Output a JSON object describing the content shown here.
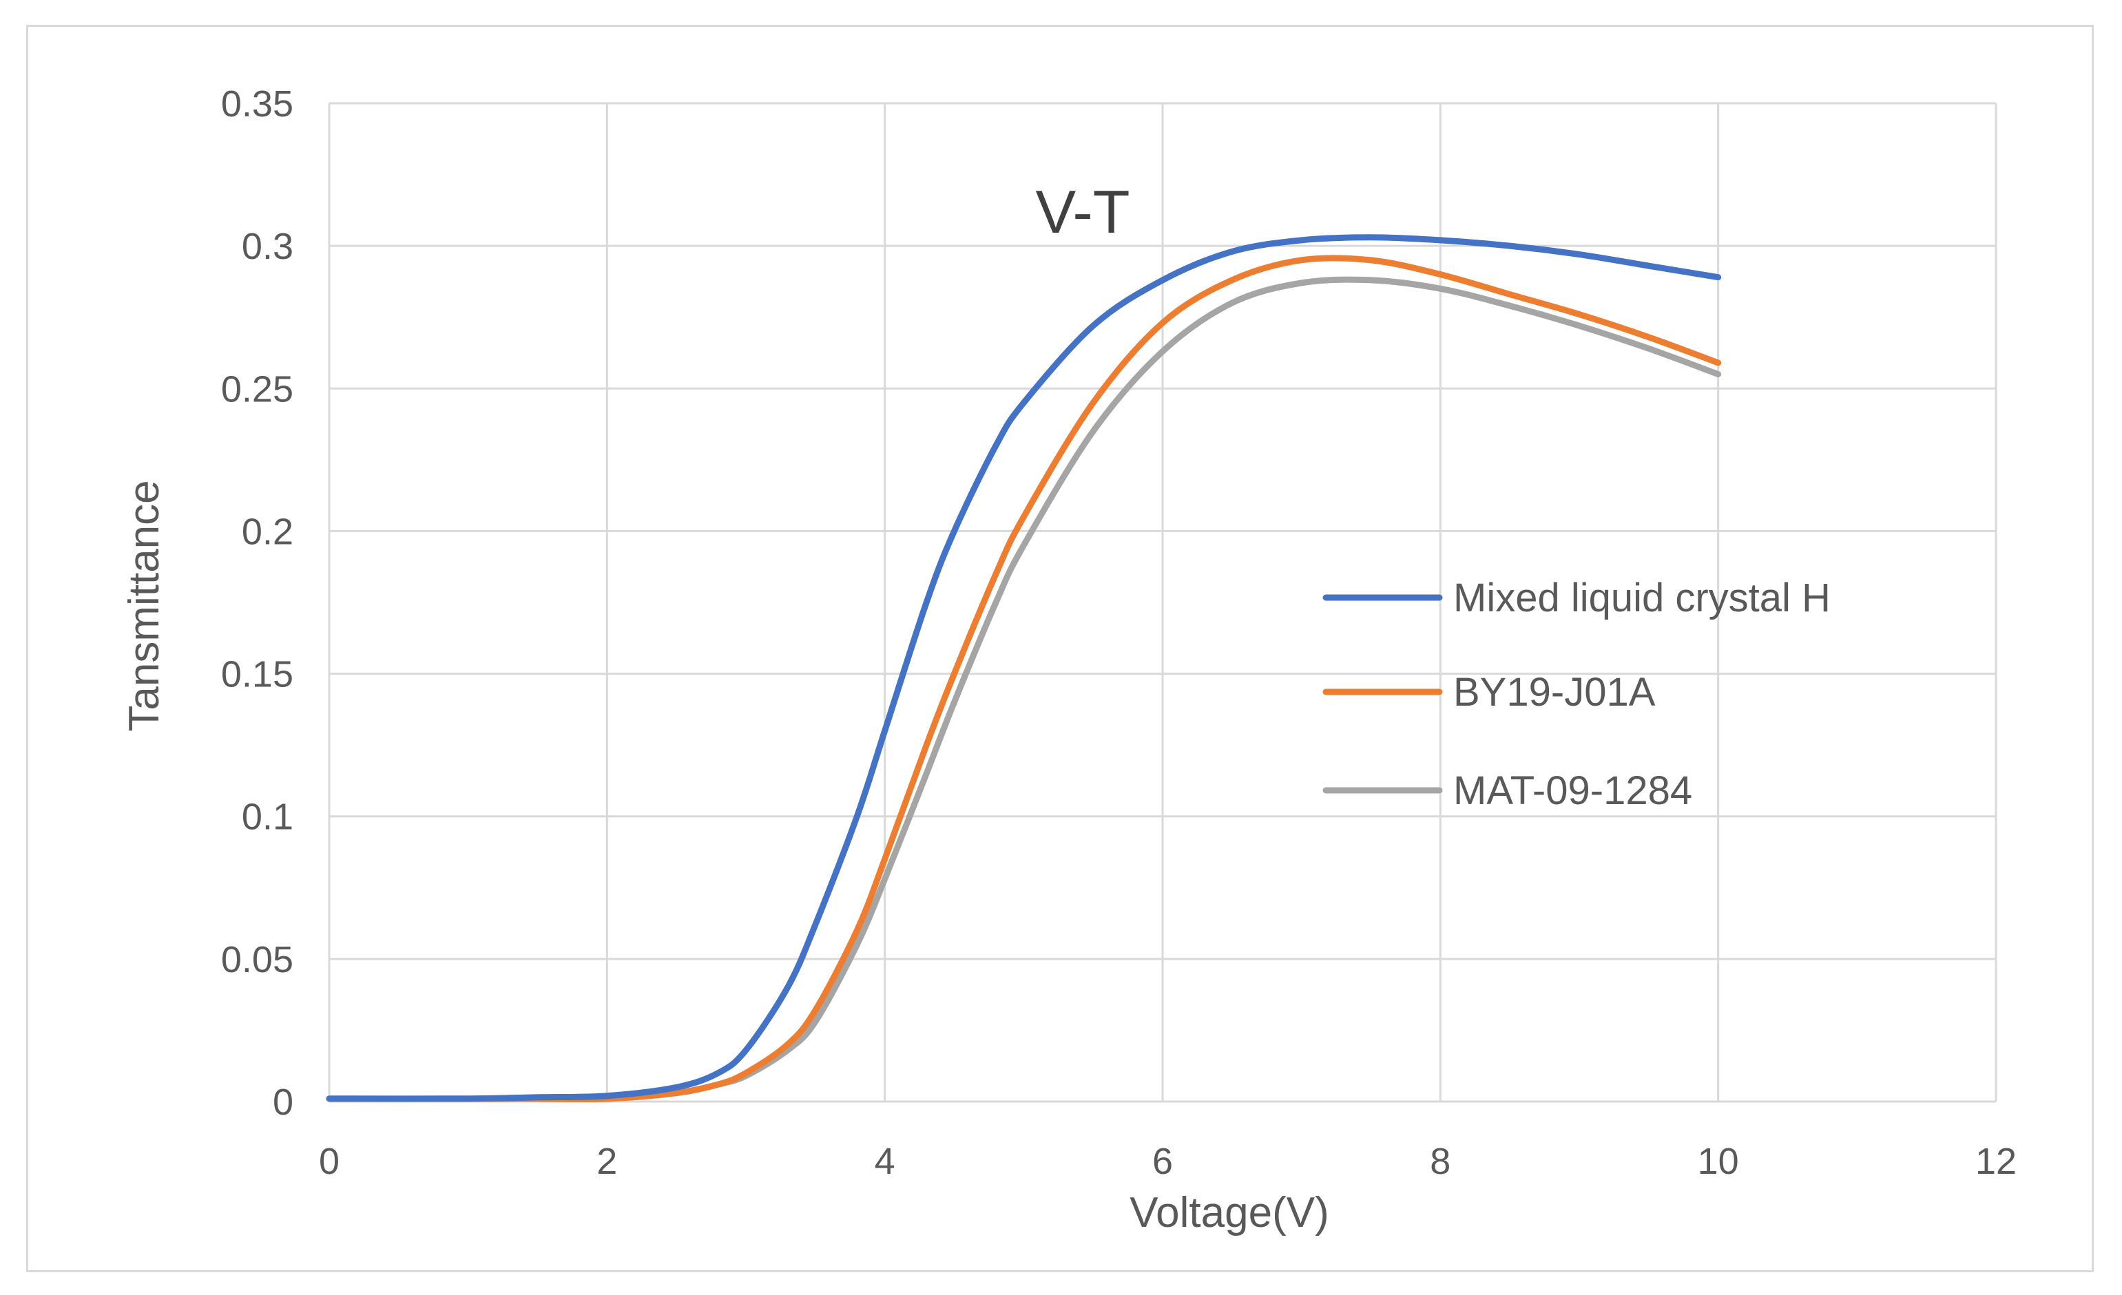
{
  "chart_data": {
    "type": "line",
    "title": "V-T",
    "xlabel": "Voltage(V)",
    "ylabel": "Tansmittance",
    "xlim": [
      0,
      12
    ],
    "ylim": [
      0,
      0.35
    ],
    "xticks": [
      0,
      2,
      4,
      6,
      8,
      10,
      12
    ],
    "yticks": [
      0,
      0.05,
      0.1,
      0.15,
      0.2,
      0.25,
      0.3,
      0.35
    ],
    "xtick_labels": [
      "0",
      "2",
      "4",
      "6",
      "8",
      "10",
      "12"
    ],
    "ytick_labels": [
      "0",
      "0.05",
      "0.1",
      "0.15",
      "0.2",
      "0.25",
      "0.3",
      "0.35"
    ],
    "grid": true,
    "legend_position": "right",
    "series": [
      {
        "name": "Mixed liquid crystal H",
        "color": "#4472c4",
        "x": [
          0,
          1,
          1.5,
          2,
          2.5,
          2.8,
          3,
          3.3,
          3.5,
          3.8,
          4,
          4.3,
          4.5,
          4.8,
          5,
          5.5,
          6,
          6.5,
          7,
          7.5,
          8,
          8.5,
          9,
          9.5,
          10
        ],
        "y": [
          0.001,
          0.001,
          0.0015,
          0.002,
          0.005,
          0.01,
          0.018,
          0.04,
          0.062,
          0.1,
          0.13,
          0.175,
          0.2,
          0.23,
          0.245,
          0.272,
          0.288,
          0.298,
          0.302,
          0.303,
          0.302,
          0.3,
          0.297,
          0.293,
          0.289
        ]
      },
      {
        "name": "BY19-J01A",
        "color": "#ed7d31",
        "x": [
          0,
          1,
          1.5,
          2,
          2.5,
          2.8,
          3,
          3.3,
          3.5,
          3.8,
          4,
          4.3,
          4.5,
          4.8,
          5,
          5.5,
          6,
          6.5,
          7,
          7.5,
          8,
          8.5,
          9,
          9.5,
          10
        ],
        "y": [
          0.001,
          0.001,
          0.001,
          0.001,
          0.003,
          0.006,
          0.01,
          0.02,
          0.032,
          0.06,
          0.085,
          0.125,
          0.15,
          0.185,
          0.205,
          0.245,
          0.273,
          0.288,
          0.295,
          0.295,
          0.29,
          0.283,
          0.276,
          0.268,
          0.259
        ]
      },
      {
        "name": "MAT-09-1284",
        "color": "#a5a5a5",
        "x": [
          0,
          1,
          1.5,
          2,
          2.5,
          2.8,
          3,
          3.3,
          3.5,
          3.8,
          4,
          4.3,
          4.5,
          4.8,
          5,
          5.5,
          6,
          6.5,
          7,
          7.5,
          8,
          8.5,
          9,
          9.5,
          10
        ],
        "y": [
          0.001,
          0.001,
          0.001,
          0.001,
          0.003,
          0.006,
          0.009,
          0.018,
          0.028,
          0.055,
          0.078,
          0.115,
          0.14,
          0.175,
          0.195,
          0.235,
          0.263,
          0.28,
          0.287,
          0.288,
          0.285,
          0.279,
          0.272,
          0.264,
          0.255
        ]
      }
    ]
  }
}
